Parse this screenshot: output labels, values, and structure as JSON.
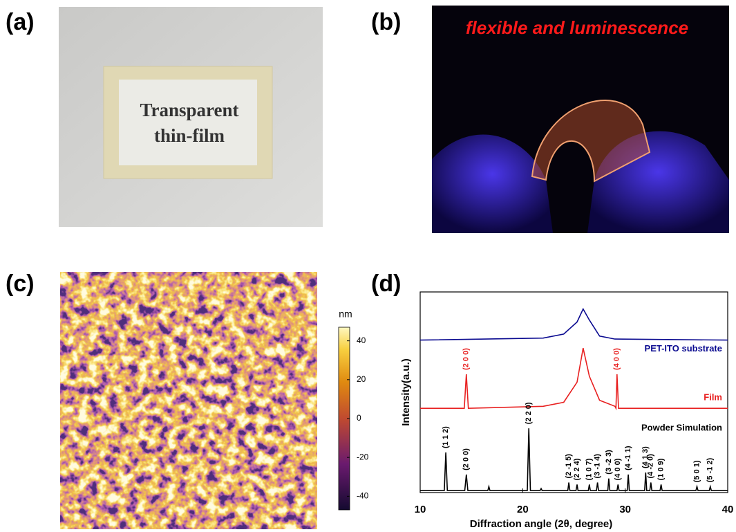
{
  "panels": [
    {
      "label": "(a)",
      "photo_text": [
        "Transparent",
        "thin-film"
      ]
    },
    {
      "label": "(b)",
      "caption": "flexible and luminescence"
    },
    {
      "label": "(c)",
      "colorbar": {
        "title": "nm",
        "ylim": [
          -47,
          47
        ],
        "yticks": [
          -40,
          -20,
          0,
          20,
          40
        ]
      }
    },
    {
      "label": "(d)"
    }
  ],
  "chart_data": {
    "type": "line",
    "xlabel": "Diffraction angle (2θ, degree)",
    "ylabel": "Intensity(a.u.)",
    "xlim": [
      10,
      40
    ],
    "xticks": [
      10,
      20,
      30,
      40
    ],
    "ylim": [
      0,
      100
    ],
    "series": [
      {
        "name": "PET-ITO substrate",
        "color": "#0a0a90",
        "x": [
          10,
          22,
          24,
          25.3,
          25.9,
          26.5,
          27.5,
          29,
          40
        ],
        "values": [
          76,
          77,
          79,
          85,
          91.5,
          86,
          78,
          76.5,
          76
        ]
      },
      {
        "name": "Film",
        "color": "#e82020",
        "x": [
          10,
          14.3,
          14.5,
          14.7,
          22,
          24,
          25.3,
          25.9,
          26.5,
          27.5,
          29,
          29.1,
          29.2,
          29.35,
          40
        ],
        "values": [
          42,
          42,
          59,
          42,
          43,
          45,
          55,
          72,
          58,
          46,
          43,
          42,
          59,
          42,
          42
        ]
      },
      {
        "name": "Powder Simulation",
        "color": "#000000",
        "x": [
          10,
          12.35,
          12.5,
          12.65,
          14.35,
          14.5,
          14.65,
          16.6,
          16.7,
          16.8,
          20.45,
          20.6,
          20.75,
          21.7,
          21.8,
          21.9,
          24.4,
          24.5,
          24.6,
          25.2,
          25.3,
          25.4,
          26.4,
          26.5,
          26.6,
          27.2,
          27.3,
          27.4,
          28.3,
          28.4,
          28.5,
          29.2,
          29.3,
          29.4,
          30.2,
          30.3,
          30.4,
          31.9,
          32.0,
          32.1,
          32.4,
          32.5,
          32.6,
          33.4,
          33.5,
          33.6,
          36.9,
          37.0,
          37.1,
          38.2,
          38.3,
          38.4,
          40
        ],
        "values": [
          1,
          1,
          20,
          1,
          1,
          9,
          1,
          1,
          3,
          1,
          1,
          32,
          1,
          1,
          2,
          1,
          1,
          5,
          1,
          1,
          4,
          1,
          1,
          4,
          1,
          1,
          5,
          1,
          1,
          7,
          1,
          1,
          4,
          1,
          1,
          9,
          1,
          1,
          10,
          1,
          1,
          5,
          1,
          1,
          4,
          1,
          1,
          3,
          1,
          1,
          3,
          1,
          1
        ]
      }
    ],
    "peak_labels": [
      {
        "series": 1,
        "label": "(2 0 0)",
        "x": 14.5
      },
      {
        "series": 1,
        "label": "(4 0 0)",
        "x": 29.2
      },
      {
        "series": 2,
        "label": "(1 1 2)",
        "x": 12.5
      },
      {
        "series": 2,
        "label": "(2 0 0)",
        "x": 14.5
      },
      {
        "series": 2,
        "label": "(2 2 0)",
        "x": 20.6
      },
      {
        "series": 2,
        "label": "(2 -1 5)",
        "x": 24.5
      },
      {
        "series": 2,
        "label": "(2 2 4)",
        "x": 25.3
      },
      {
        "series": 2,
        "label": "(1 0 7)",
        "x": 26.5
      },
      {
        "series": 2,
        "label": "(3 -1 4)",
        "x": 27.3
      },
      {
        "series": 2,
        "label": "(3 -2 3)",
        "x": 28.4
      },
      {
        "series": 2,
        "label": "(4 0 0)",
        "x": 29.3
      },
      {
        "series": 2,
        "label": "(4 -1 1)",
        "x": 30.3
      },
      {
        "series": 2,
        "label": "(4 1 3)",
        "x": 32.0
      },
      {
        "series": 2,
        "label": "(4 -2 0)",
        "x": 32.5
      },
      {
        "series": 2,
        "label": "(1 0 9)",
        "x": 33.5
      },
      {
        "series": 2,
        "label": "(5 0 1)",
        "x": 37.0
      },
      {
        "series": 2,
        "label": "(5 -1 2)",
        "x": 38.3
      }
    ]
  }
}
